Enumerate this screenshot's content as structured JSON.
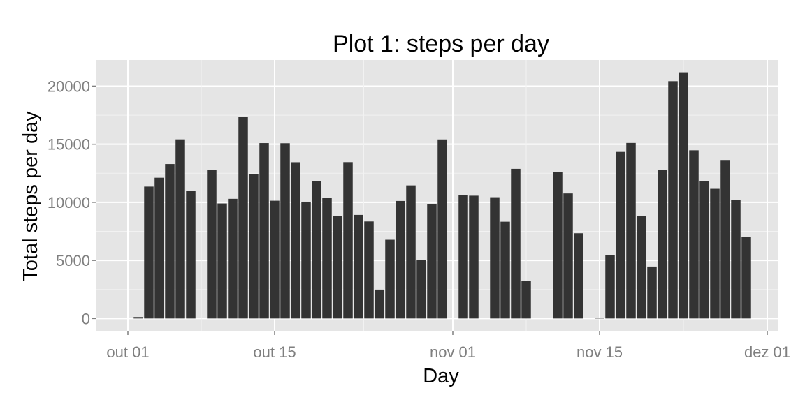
{
  "chart_data": {
    "type": "bar",
    "title": "Plot 1: steps per day",
    "xlabel": "Day",
    "ylabel": "Total steps per day",
    "x_ticks": [
      "out 01",
      "out 15",
      "nov 01",
      "nov 15",
      "dez 01"
    ],
    "y_ticks": [
      "0",
      "5000",
      "10000",
      "15000",
      "20000"
    ],
    "ylim": [
      -1060,
      22250
    ],
    "xlim": [
      "2012-09-28",
      "2012-12-02"
    ],
    "grid": true,
    "colors": {
      "bar": "#333333",
      "panel": "#e5e5e5",
      "grid_major": "#ffffff",
      "grid_minor": "#f2f2f2",
      "tick_label": "#7f7f7f"
    },
    "x": [
      "2012-10-01",
      "2012-10-02",
      "2012-10-03",
      "2012-10-04",
      "2012-10-05",
      "2012-10-06",
      "2012-10-07",
      "2012-10-08",
      "2012-10-09",
      "2012-10-10",
      "2012-10-11",
      "2012-10-12",
      "2012-10-13",
      "2012-10-14",
      "2012-10-15",
      "2012-10-16",
      "2012-10-17",
      "2012-10-18",
      "2012-10-19",
      "2012-10-20",
      "2012-10-21",
      "2012-10-22",
      "2012-10-23",
      "2012-10-24",
      "2012-10-25",
      "2012-10-26",
      "2012-10-27",
      "2012-10-28",
      "2012-10-29",
      "2012-10-30",
      "2012-10-31",
      "2012-11-01",
      "2012-11-02",
      "2012-11-03",
      "2012-11-04",
      "2012-11-05",
      "2012-11-06",
      "2012-11-07",
      "2012-11-08",
      "2012-11-09",
      "2012-11-10",
      "2012-11-11",
      "2012-11-12",
      "2012-11-13",
      "2012-11-14",
      "2012-11-15",
      "2012-11-16",
      "2012-11-17",
      "2012-11-18",
      "2012-11-19",
      "2012-11-20",
      "2012-11-21",
      "2012-11-22",
      "2012-11-23",
      "2012-11-24",
      "2012-11-25",
      "2012-11-26",
      "2012-11-27",
      "2012-11-28",
      "2012-11-29",
      "2012-11-30"
    ],
    "values": [
      0,
      126,
      11352,
      12116,
      13294,
      15420,
      11015,
      0,
      12811,
      9900,
      10304,
      17382,
      12426,
      15098,
      10139,
      15084,
      13452,
      10056,
      11829,
      10395,
      8821,
      13460,
      8918,
      8355,
      2492,
      6778,
      10119,
      11458,
      5018,
      9819,
      15414,
      0,
      10600,
      10571,
      0,
      10439,
      8334,
      12883,
      3219,
      0,
      0,
      12608,
      10765,
      7336,
      0,
      41,
      5441,
      14339,
      15110,
      8841,
      4472,
      12787,
      20427,
      21194,
      14478,
      11834,
      11162,
      13646,
      10183,
      7047,
      0
    ]
  }
}
